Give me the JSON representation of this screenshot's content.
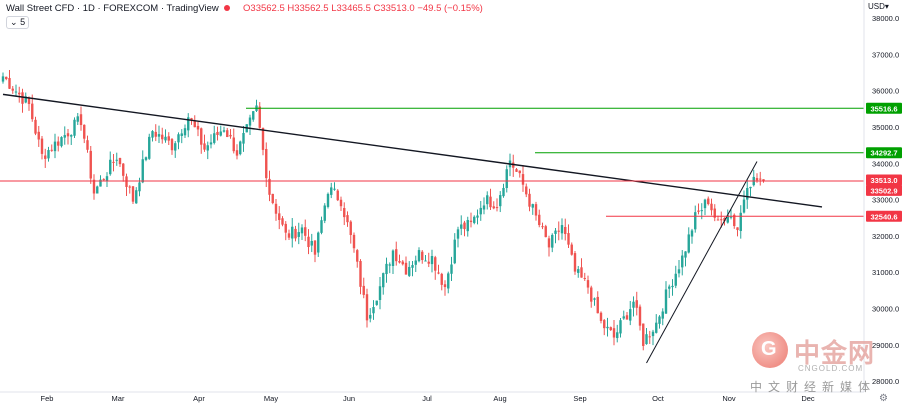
{
  "header": {
    "title": "Wall Street CFD · 1D · FOREXCOM · TradingView",
    "ohlc": "O33562.5 H33562.5 L33465.5 C33513.0 −49.5 (−0.15%)",
    "collapse_label": "5"
  },
  "currency": "USD",
  "watermark": {
    "logo_glyph": "G",
    "cn_name": "中金网",
    "en_name": "CNGOLD.COM",
    "subtitle": "中文财经新媒体"
  },
  "colors": {
    "up": "#26a69a",
    "down": "#ef5350",
    "trendline": "#131722",
    "support_line": "#f23645",
    "resistance_line": "#00a000"
  },
  "chart_data": {
    "type": "candlestick",
    "title": "",
    "xlabel": "",
    "ylabel": "",
    "x_ticks": [
      "Feb",
      "Mar",
      "Apr",
      "May",
      "Jun",
      "Jul",
      "Aug",
      "Sep",
      "Oct",
      "Nov",
      "Dec"
    ],
    "y_ticks": [
      28000,
      29000,
      30000,
      31000,
      32000,
      33000,
      34000,
      35000,
      36000,
      37000,
      38000
    ],
    "ylim": [
      27700,
      38500
    ],
    "price_levels": [
      {
        "label": "35516.6",
        "value": 35516.6,
        "color": "#00a000"
      },
      {
        "label": "34292.7",
        "value": 34292.7,
        "color": "#00a000"
      },
      {
        "label": "33513.0",
        "value": 33513.0,
        "color": "#f23645"
      },
      {
        "label": "33502.9",
        "value": 33502.9,
        "color": "#f23645"
      },
      {
        "label": "32540.6",
        "value": 32540.6,
        "color": "#f23645"
      }
    ],
    "lines": [
      {
        "name": "downtrend",
        "from": [
          0,
          35900
        ],
        "to": [
          252,
          32800
        ]
      },
      {
        "name": "uptrend",
        "from": [
          198,
          28500
        ],
        "to": [
          232,
          34050
        ]
      }
    ],
    "waypoints": [
      [
        0,
        36400
      ],
      [
        8,
        35600
      ],
      [
        12,
        34200
      ],
      [
        18,
        34700
      ],
      [
        24,
        35200
      ],
      [
        28,
        33200
      ],
      [
        35,
        34200
      ],
      [
        40,
        33000
      ],
      [
        46,
        34900
      ],
      [
        52,
        34500
      ],
      [
        57,
        35300
      ],
      [
        62,
        34400
      ],
      [
        68,
        35000
      ],
      [
        72,
        34300
      ],
      [
        78,
        35500
      ],
      [
        82,
        33200
      ],
      [
        87,
        32000
      ],
      [
        92,
        32200
      ],
      [
        96,
        31500
      ],
      [
        100,
        33300
      ],
      [
        104,
        33000
      ],
      [
        108,
        31600
      ],
      [
        112,
        29800
      ],
      [
        116,
        30600
      ],
      [
        120,
        31600
      ],
      [
        124,
        31100
      ],
      [
        128,
        31500
      ],
      [
        132,
        31400
      ],
      [
        136,
        30600
      ],
      [
        140,
        32200
      ],
      [
        144,
        32300
      ],
      [
        148,
        33000
      ],
      [
        152,
        32900
      ],
      [
        156,
        34100
      ],
      [
        160,
        33400
      ],
      [
        164,
        32500
      ],
      [
        168,
        31700
      ],
      [
        172,
        32300
      ],
      [
        176,
        31000
      ],
      [
        180,
        30600
      ],
      [
        184,
        29600
      ],
      [
        188,
        29200
      ],
      [
        191,
        29700
      ],
      [
        194,
        30200
      ],
      [
        197,
        29100
      ],
      [
        201,
        29600
      ],
      [
        205,
        30600
      ],
      [
        209,
        31400
      ],
      [
        213,
        32500
      ],
      [
        217,
        33000
      ],
      [
        220,
        32300
      ],
      [
        223,
        32700
      ],
      [
        226,
        32200
      ],
      [
        229,
        33500
      ],
      [
        232,
        33550
      ],
      [
        234,
        33513
      ]
    ]
  }
}
